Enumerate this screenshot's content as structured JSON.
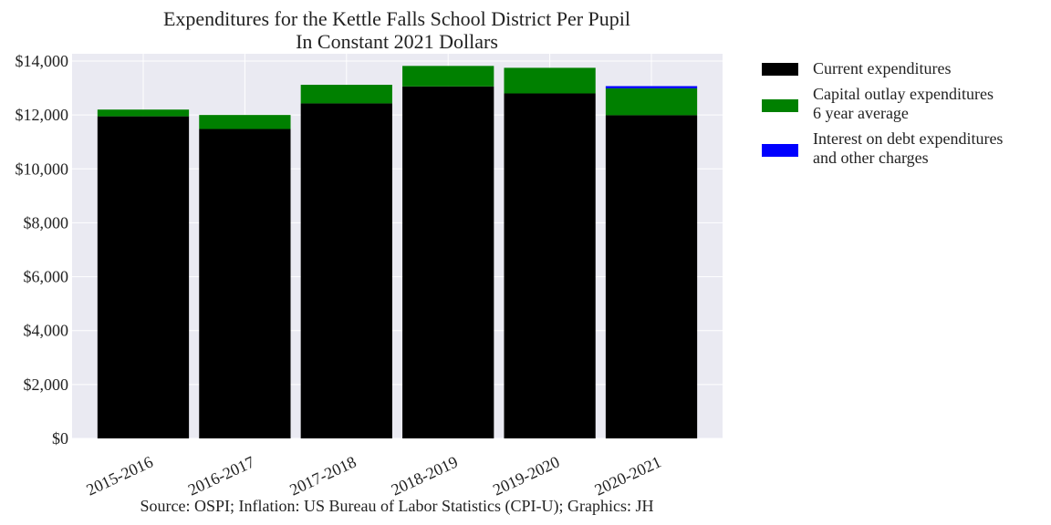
{
  "chart_data": {
    "type": "bar",
    "stacked": true,
    "title": [
      "Expenditures for the Kettle Falls School District Per Pupil",
      "In Constant 2021 Dollars"
    ],
    "xlabel": "",
    "ylabel": "",
    "categories": [
      "2015-2016",
      "2016-2017",
      "2017-2018",
      "2018-2019",
      "2019-2020",
      "2020-2021"
    ],
    "series": [
      {
        "name": [
          "Current expenditures"
        ],
        "color": "#000000",
        "values": [
          11950,
          11480,
          12430,
          13060,
          12800,
          11990
        ]
      },
      {
        "name": [
          "Capital outlay expenditures",
          "6 year average"
        ],
        "color": "#008000",
        "values": [
          250,
          520,
          690,
          760,
          950,
          1000
        ]
      },
      {
        "name": [
          "Interest on debt expenditures",
          "and other charges"
        ],
        "color": "#0000ff",
        "values": [
          0,
          0,
          0,
          0,
          0,
          80
        ]
      }
    ],
    "ylim": [
      0,
      14000
    ],
    "yticks": [
      0,
      2000,
      4000,
      6000,
      8000,
      10000,
      12000,
      14000
    ],
    "ytick_labels": [
      "$0",
      "$2,000",
      "$4,000",
      "$6,000",
      "$8,000",
      "$10,000",
      "$12,000",
      "$14,000"
    ],
    "grid": true,
    "legend_position": "outside right, top",
    "background": "#eaeaf2"
  },
  "source": "Source: OSPI; Inflation: US Bureau of Labor Statistics (CPI-U); Graphics: JH"
}
